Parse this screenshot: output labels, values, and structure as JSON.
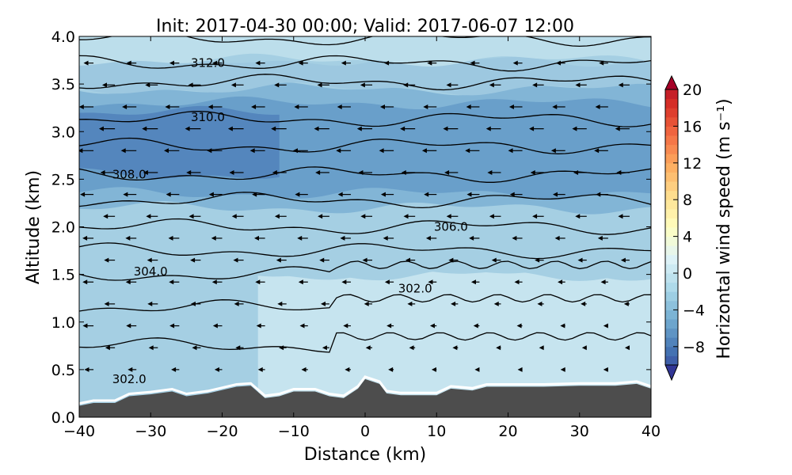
{
  "chart_data": {
    "type": "heatmap",
    "title": "Init: 2017-04-30 00:00; Valid: 2017-06-07 12:00",
    "xlabel": "Distance (km)",
    "ylabel": "Altitude (km)",
    "xlim": [
      -40,
      40
    ],
    "ylim": [
      0.0,
      4.0
    ],
    "xticks": [
      "−40",
      "−30",
      "−20",
      "−10",
      "0",
      "10",
      "20",
      "30",
      "40"
    ],
    "xtick_values": [
      -40,
      -30,
      -20,
      -10,
      0,
      10,
      20,
      30,
      40
    ],
    "yticks": [
      "0.0",
      "0.5",
      "1.0",
      "1.5",
      "2.0",
      "2.5",
      "3.0",
      "3.5",
      "4.0"
    ],
    "ytick_values": [
      0,
      0.5,
      1,
      1.5,
      2,
      2.5,
      3,
      3.5,
      4
    ],
    "grid": false,
    "colorbar": {
      "label": "Horizontal wind speed (m s⁻¹)",
      "range": [
        -10,
        20
      ],
      "extend": "both",
      "colormap": "RdYlBu_r",
      "ticks": [
        "−8",
        "−4",
        "0",
        "4",
        "8",
        "12",
        "16",
        "20"
      ],
      "tick_values": [
        -8,
        -4,
        0,
        4,
        8,
        12,
        16,
        20
      ],
      "placement": "right"
    },
    "filled_regions": [
      {
        "value": -3,
        "color": "#c6e4ef",
        "x": [
          -15,
          40
        ],
        "alt": [
          0.0,
          1.5
        ]
      },
      {
        "value": -4.5,
        "color": "#a5cfe3",
        "x": [
          -40,
          -15
        ],
        "alt": [
          0.0,
          1.5
        ]
      },
      {
        "value": -4.5,
        "color": "#a5cfe3",
        "x": [
          -40,
          40
        ],
        "alt": [
          1.5,
          2.2
        ]
      },
      {
        "value": -6,
        "color": "#82b5d6",
        "x": [
          -40,
          40
        ],
        "alt": [
          2.2,
          3.45
        ]
      },
      {
        "value": -7,
        "color": "#699fca",
        "x": [
          -40,
          40
        ],
        "alt": [
          2.35,
          3.3
        ]
      },
      {
        "value": -8,
        "color": "#5486bd",
        "x": [
          -40,
          -12
        ],
        "alt": [
          2.55,
          3.2
        ]
      },
      {
        "value": -5,
        "color": "#9dc8e0",
        "x": [
          -40,
          40
        ],
        "alt": [
          3.45,
          3.75
        ]
      },
      {
        "value": -3.5,
        "color": "#bcdeeb",
        "x": [
          -40,
          40
        ],
        "alt": [
          3.75,
          4.0
        ]
      }
    ],
    "contour_labels": [
      {
        "text": "312.0",
        "x": -22,
        "alt": 3.72
      },
      {
        "text": "310.0",
        "x": -22,
        "alt": 3.15
      },
      {
        "text": "308.0",
        "x": -33,
        "alt": 2.55
      },
      {
        "text": "306.0",
        "x": 12,
        "alt": 2.0
      },
      {
        "text": "304.0",
        "x": -30,
        "alt": 1.53
      },
      {
        "text": "302.0",
        "x": 7,
        "alt": 1.35
      },
      {
        "text": "302.0",
        "x": -33,
        "alt": 0.4
      }
    ],
    "contour_altitudes_left": [
      3.98,
      3.72,
      3.52,
      3.13,
      2.85,
      2.55,
      2.28,
      2.0,
      1.75,
      1.5,
      1.15,
      0.75
    ],
    "terrain": {
      "x": [
        -40,
        -38,
        -35,
        -33,
        -30,
        -27,
        -25,
        -22,
        -18,
        -16,
        -14,
        -12,
        -10,
        -7,
        -5,
        -3,
        -1,
        0,
        2,
        3,
        5,
        10,
        12,
        15,
        17,
        20,
        25,
        30,
        35,
        38,
        40
      ],
      "alt": [
        0.12,
        0.15,
        0.15,
        0.22,
        0.24,
        0.27,
        0.22,
        0.25,
        0.32,
        0.33,
        0.2,
        0.22,
        0.27,
        0.27,
        0.22,
        0.2,
        0.3,
        0.4,
        0.35,
        0.25,
        0.23,
        0.23,
        0.3,
        0.28,
        0.32,
        0.32,
        0.32,
        0.33,
        0.33,
        0.35,
        0.3
      ],
      "color": "#4d4d4d"
    },
    "wind_u_profile": {
      "alt": [
        0.5,
        1.0,
        1.5,
        2.0,
        2.5,
        3.0,
        3.5,
        3.9
      ],
      "u_left": [
        -4,
        -5,
        -5,
        -5,
        -7,
        -8,
        -6,
        -3
      ],
      "u_right": [
        0,
        -1,
        -3,
        -5,
        -6,
        -7,
        -5,
        -3
      ]
    }
  }
}
